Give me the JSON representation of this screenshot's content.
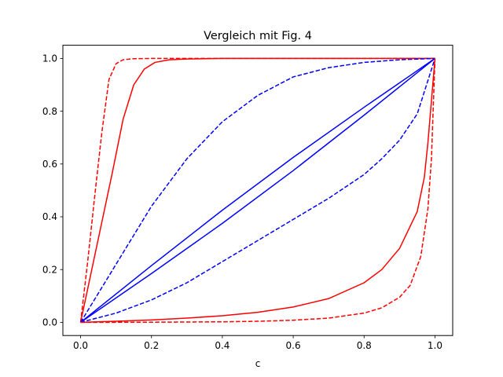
{
  "chart_data": {
    "type": "line",
    "title": "Vergleich mit Fig. 4",
    "xlabel": "c",
    "ylabel": "",
    "xlim": [
      -0.05,
      1.05
    ],
    "ylim": [
      -0.05,
      1.05
    ],
    "xticks": [
      "0.0",
      "0.2",
      "0.4",
      "0.6",
      "0.8",
      "1.0"
    ],
    "yticks": [
      "0.0",
      "0.2",
      "0.4",
      "0.6",
      "0.8",
      "1.0"
    ],
    "grid": false,
    "legend": "none",
    "series": [
      {
        "color": "#ff0000",
        "dash": "dashed",
        "x": [
          0,
          0.02,
          0.04,
          0.06,
          0.08,
          0.1,
          0.12,
          0.15,
          0.2,
          0.3,
          1.0
        ],
        "y": [
          0,
          0.23,
          0.48,
          0.72,
          0.92,
          0.98,
          0.995,
          0.999,
          1.0,
          1.0,
          1.0
        ]
      },
      {
        "color": "#ff0000",
        "dash": "solid",
        "x": [
          0,
          0.03,
          0.06,
          0.09,
          0.12,
          0.15,
          0.18,
          0.21,
          0.25,
          0.3,
          0.4,
          0.6,
          1.0
        ],
        "y": [
          0,
          0.19,
          0.38,
          0.57,
          0.77,
          0.9,
          0.96,
          0.985,
          0.995,
          0.998,
          1.0,
          1.0,
          1.0
        ]
      },
      {
        "color": "#0000ff",
        "dash": "dashed",
        "x": [
          0,
          0.1,
          0.2,
          0.3,
          0.4,
          0.5,
          0.6,
          0.7,
          0.8,
          0.9,
          1.0
        ],
        "y": [
          0,
          0.22,
          0.44,
          0.62,
          0.76,
          0.86,
          0.93,
          0.965,
          0.985,
          0.995,
          1.0
        ]
      },
      {
        "color": "#0000ff",
        "dash": "solid",
        "x": [
          0,
          0.2,
          0.4,
          0.6,
          0.8,
          1.0
        ],
        "y": [
          0,
          0.215,
          0.425,
          0.625,
          0.815,
          1.0
        ]
      },
      {
        "color": "#0000ff",
        "dash": "solid",
        "x": [
          0,
          0.2,
          0.4,
          0.6,
          0.8,
          1.0
        ],
        "y": [
          0,
          0.185,
          0.375,
          0.575,
          0.785,
          1.0
        ]
      },
      {
        "color": "#0000ff",
        "dash": "dashed",
        "x": [
          0,
          0.1,
          0.2,
          0.3,
          0.4,
          0.5,
          0.6,
          0.7,
          0.8,
          0.85,
          0.9,
          0.95,
          1.0
        ],
        "y": [
          0,
          0.035,
          0.085,
          0.15,
          0.23,
          0.31,
          0.39,
          0.47,
          0.56,
          0.62,
          0.69,
          0.79,
          1.0
        ]
      },
      {
        "color": "#ff0000",
        "dash": "solid",
        "x": [
          0,
          0.1,
          0.2,
          0.3,
          0.4,
          0.5,
          0.6,
          0.7,
          0.8,
          0.85,
          0.9,
          0.95,
          0.97,
          0.98,
          0.99,
          1.0
        ],
        "y": [
          0,
          0.004,
          0.009,
          0.016,
          0.025,
          0.038,
          0.058,
          0.09,
          0.15,
          0.2,
          0.28,
          0.42,
          0.55,
          0.68,
          0.84,
          1.0
        ]
      },
      {
        "color": "#ff0000",
        "dash": "dashed",
        "x": [
          0,
          0.2,
          0.4,
          0.5,
          0.6,
          0.7,
          0.8,
          0.85,
          0.9,
          0.93,
          0.96,
          0.98,
          0.99,
          1.0
        ],
        "y": [
          0,
          0.0005,
          0.002,
          0.004,
          0.008,
          0.016,
          0.035,
          0.055,
          0.095,
          0.14,
          0.25,
          0.43,
          0.62,
          1.0
        ]
      }
    ]
  }
}
